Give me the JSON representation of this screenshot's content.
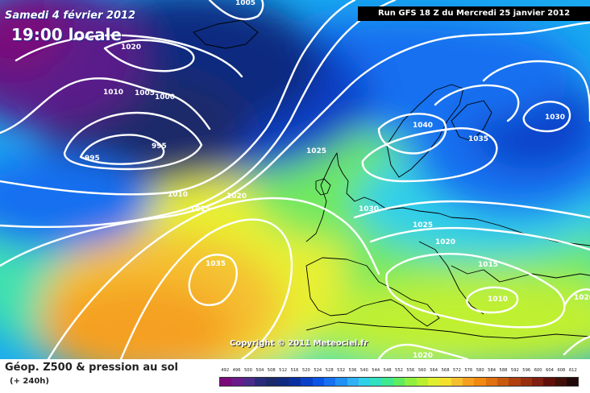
{
  "header": {
    "date": "Samedi 4 février 2012",
    "local_time": "19:00 locale",
    "run_info": "Run GFS 18 Z du Mercredi 25 janvier 2012"
  },
  "copyright": "Copyright © 2011 Meteociel.fr",
  "footer": {
    "field_title": "Géop. Z500 & pression au sol",
    "lead_time": "(+ 240h)"
  },
  "isobars": [
    {
      "label": "1005"
    },
    {
      "label": "1020"
    },
    {
      "label": "1010"
    },
    {
      "label": "1005"
    },
    {
      "label": "1000"
    },
    {
      "label": "995"
    },
    {
      "label": "995"
    },
    {
      "label": "1040"
    },
    {
      "label": "1035"
    },
    {
      "label": "1030"
    },
    {
      "label": "1025"
    },
    {
      "label": "1010"
    },
    {
      "label": "1020"
    },
    {
      "label": "1015"
    },
    {
      "label": "1030"
    },
    {
      "label": "1025"
    },
    {
      "label": "1020"
    },
    {
      "label": "1015"
    },
    {
      "label": "1035"
    },
    {
      "label": "1010"
    },
    {
      "label": "1020"
    },
    {
      "label": "1020"
    }
  ],
  "legend": {
    "unit_values": [
      "492",
      "496",
      "500",
      "504",
      "508",
      "512",
      "516",
      "520",
      "524",
      "528",
      "532",
      "536",
      "540",
      "544",
      "548",
      "552",
      "556",
      "560",
      "564",
      "568",
      "572",
      "576",
      "580",
      "584",
      "588",
      "592",
      "596",
      "600",
      "604",
      "608",
      "612"
    ],
    "colors": [
      "#7a0a7a",
      "#6a1a8a",
      "#4a2a8a",
      "#2a2a7a",
      "#1a2a6a",
      "#102a80",
      "#0a30a0",
      "#0a40c8",
      "#0a55e6",
      "#1670f0",
      "#2090f5",
      "#30b0f5",
      "#30d0e8",
      "#30e0c0",
      "#40e890",
      "#60ec60",
      "#90f040",
      "#b8f030",
      "#e0f030",
      "#f5e030",
      "#f5c030",
      "#f5a020",
      "#f08a10",
      "#e07010",
      "#c85a10",
      "#b04010",
      "#983010",
      "#802010",
      "#601008",
      "#401008",
      "#200808"
    ]
  }
}
